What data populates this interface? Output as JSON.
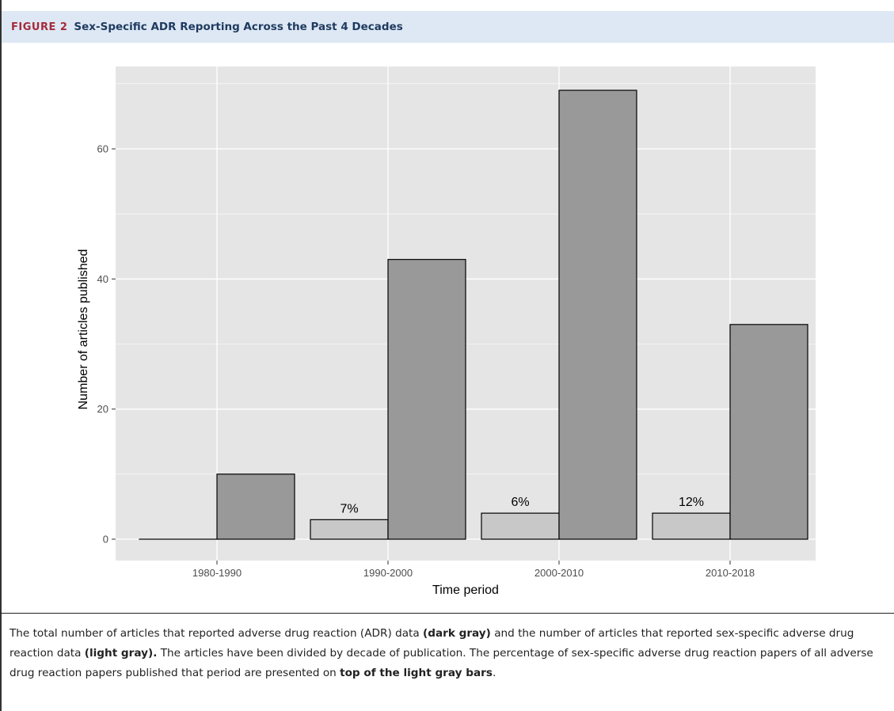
{
  "figure": {
    "label": "FIGURE 2",
    "title": "Sex-Specific ADR Reporting Across the Past 4 Decades"
  },
  "colors": {
    "panel_bg": "#e5e5e5",
    "grid": "#ffffff",
    "light_bar": "#c8c8c8",
    "dark_bar": "#999999",
    "bar_stroke": "#000000"
  },
  "chart_data": {
    "type": "bar",
    "categories": [
      "1980-1990",
      "1990-2000",
      "2000-2010",
      "2010-2018"
    ],
    "series": [
      {
        "name": "light gray",
        "values": [
          0,
          3,
          4,
          4
        ]
      },
      {
        "name": "dark gray",
        "values": [
          10,
          43,
          69,
          33
        ]
      }
    ],
    "bar_labels": [
      "",
      "7%",
      "6%",
      "12%"
    ],
    "xlabel": "Time period",
    "ylabel": "Number of articles published",
    "ylim": [
      0,
      72
    ],
    "yticks": [
      0,
      20,
      40,
      60
    ],
    "grid": true,
    "legend": "none"
  },
  "caption": {
    "p1": "The total number of articles that reported adverse drug reaction (ADR) data ",
    "b1": "(dark gray)",
    "p2": " and the number of articles that reported sex-specific adverse drug reaction data ",
    "b2": "(light gray).",
    "p3": " The articles have been divided by decade of publication. The percentage of sex-specific adverse drug reaction papers of all adverse drug reaction papers published that period are presented on ",
    "b3": "top of the light gray bars",
    "p4": "."
  }
}
